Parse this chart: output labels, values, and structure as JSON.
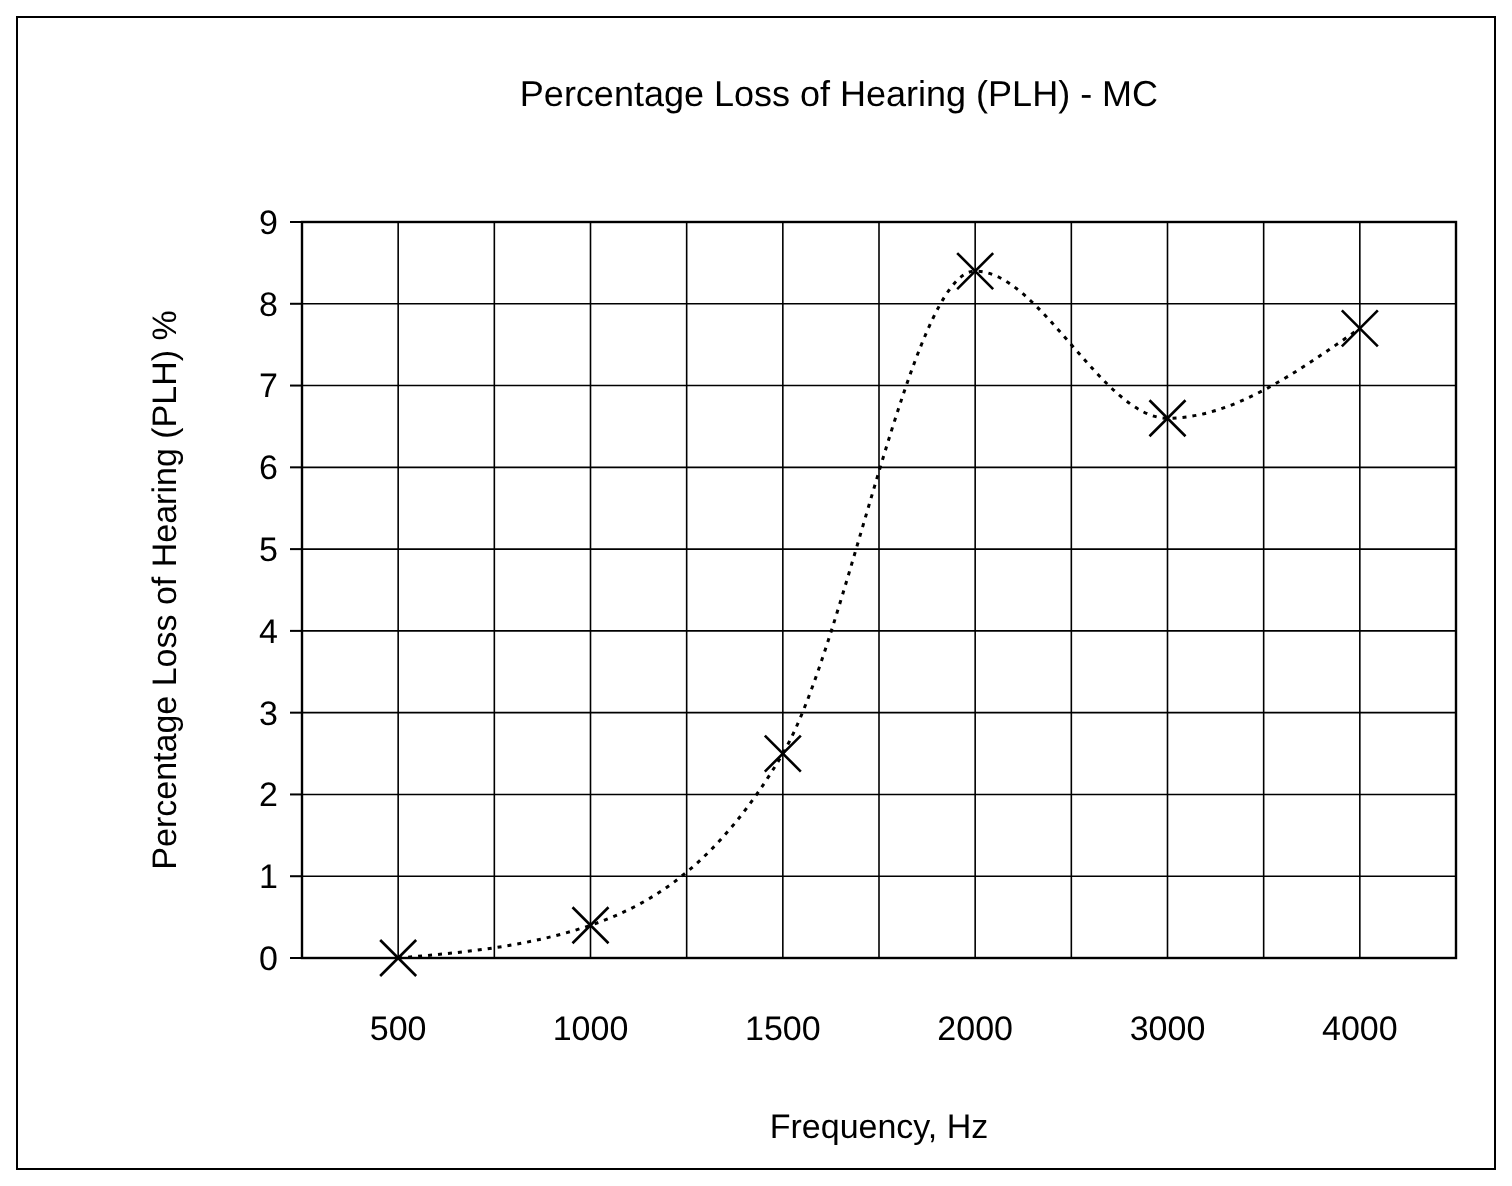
{
  "chart_data": {
    "type": "line",
    "title": "Percentage Loss of Hearing  (PLH) - MC",
    "xlabel": "Frequency, Hz",
    "ylabel": "Percentage Loss of Hearing (PLH) %",
    "categories": [
      "500",
      "1000",
      "1500",
      "2000",
      "3000",
      "4000"
    ],
    "series": [
      {
        "color": "#000000",
        "values": [
          0,
          0.4,
          2.5,
          8.4,
          6.6,
          7.7
        ]
      }
    ],
    "ylim": [
      0,
      9
    ],
    "yticks": [
      0,
      1,
      2,
      3,
      4,
      5,
      6,
      7,
      8,
      9
    ],
    "grid": true,
    "marker": "cross",
    "line_style": "dotted"
  }
}
